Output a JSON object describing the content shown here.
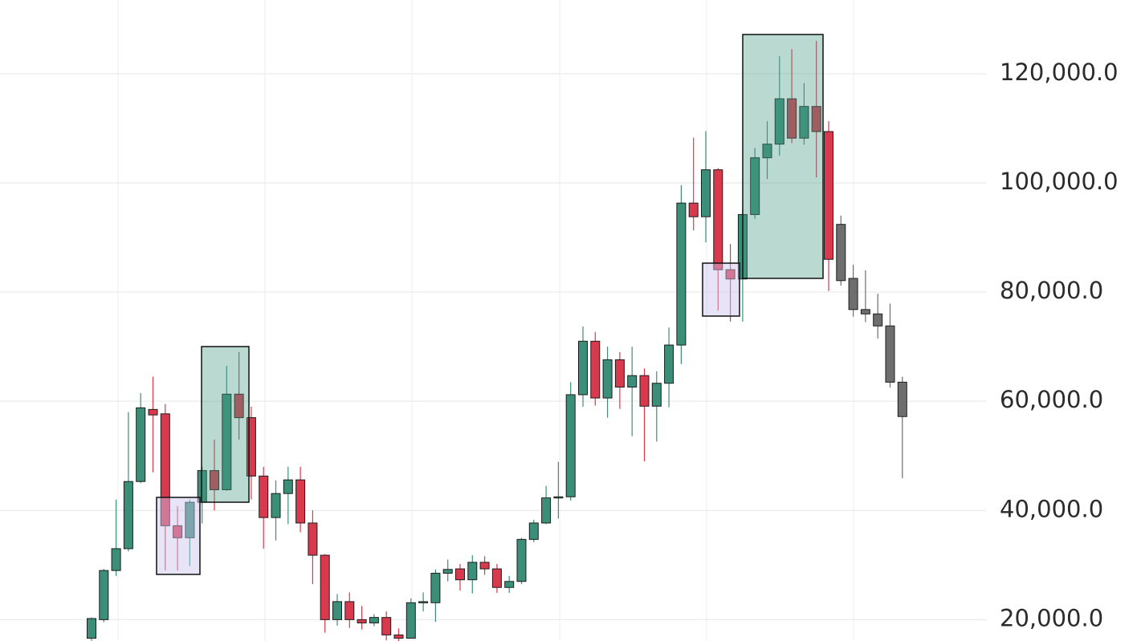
{
  "chart_data": {
    "type": "candlestick",
    "ylim": [
      15500,
      133500
    ],
    "yticks": [
      {
        "value": 20000,
        "label": "20,000.0"
      },
      {
        "value": 40000,
        "label": "40,000.0"
      },
      {
        "value": 60000,
        "label": "60,000.0"
      },
      {
        "value": 80000,
        "label": "80,000.0"
      },
      {
        "value": 100000,
        "label": "100,000.0"
      },
      {
        "value": 120000,
        "label": "120,000.0"
      }
    ],
    "grid": true,
    "series": [
      {
        "color_up": "#3b8f78",
        "color_down": "#d8394c",
        "open": [
          16600,
          20000,
          29000,
          33000,
          45300,
          58500,
          57700,
          37200,
          35000,
          41500,
          47300,
          43800,
          61300,
          57000,
          46300,
          38700,
          43100,
          45600,
          37700,
          31800,
          20000,
          23300,
          20000,
          19400,
          20400,
          17200,
          16600,
          23100,
          23100,
          28500,
          29300,
          27300,
          30500,
          29300,
          25900,
          27000,
          34700,
          37700,
          42300,
          42500,
          61200,
          71000,
          60600,
          67600,
          62600,
          64700,
          59100,
          63300,
          70300,
          96300,
          93800,
          102400,
          84100,
          82400,
          94200,
          104600,
          107100,
          115400,
          108200,
          114000,
          109400
        ],
        "high": [
          20400,
          29300,
          42000,
          58000,
          61500,
          64500,
          59500,
          40800,
          42000,
          48000,
          53000,
          66500,
          69000,
          59000,
          48000,
          45500,
          48000,
          48000,
          40000,
          32000,
          24700,
          25000,
          22500,
          21000,
          21500,
          18400,
          23900,
          25000,
          29200,
          31000,
          30200,
          31800,
          31600,
          30200,
          28000,
          35000,
          38300,
          44500,
          48900,
          63500,
          73700,
          72700,
          70000,
          69000,
          70000,
          66000,
          65500,
          73500,
          99600,
          108300,
          109500,
          102700,
          88800,
          95700,
          106400,
          111300,
          123200,
          124500,
          118300,
          126000,
          111300
        ],
        "low": [
          16100,
          19500,
          28000,
          32500,
          45000,
          47000,
          29000,
          29000,
          29800,
          37600,
          40000,
          43600,
          53000,
          42000,
          33000,
          34500,
          37500,
          36000,
          26500,
          17600,
          18900,
          18500,
          18200,
          18800,
          16200,
          16000,
          16500,
          21500,
          19600,
          27000,
          25300,
          24800,
          28200,
          24900,
          24900,
          26500,
          34200,
          37500,
          38500,
          41800,
          59000,
          59200,
          57000,
          58600,
          53600,
          49000,
          52600,
          58900,
          66800,
          91300,
          89100,
          76600,
          74600,
          74600,
          93400,
          100700,
          105000,
          107300,
          107000,
          101000,
          80200
        ],
        "close": [
          20200,
          29000,
          33000,
          45300,
          58800,
          57500,
          37200,
          35000,
          41500,
          47300,
          43800,
          61300,
          57000,
          46300,
          38700,
          43100,
          45600,
          37700,
          31800,
          20000,
          23300,
          20000,
          19400,
          20400,
          17200,
          16600,
          23100,
          23300,
          28500,
          29200,
          27300,
          30500,
          29300,
          25900,
          27000,
          34700,
          37700,
          42300,
          42500,
          61200,
          71000,
          60600,
          67600,
          62600,
          64700,
          59100,
          63300,
          70300,
          96300,
          93800,
          102400,
          84100,
          82400,
          94200,
          104600,
          107100,
          115400,
          108200,
          114000,
          109400,
          86000
        ]
      },
      {
        "color": "#6e6e6e",
        "open": [
          92400,
          82500,
          76800,
          76000,
          73800,
          63500
        ],
        "high": [
          94000,
          85000,
          84000,
          79700,
          77900,
          64500
        ],
        "low": [
          81200,
          75500,
          74500,
          71500,
          62500,
          45900
        ],
        "close": [
          82100,
          76800,
          76000,
          73800,
          63500,
          57200
        ]
      }
    ]
  }
}
